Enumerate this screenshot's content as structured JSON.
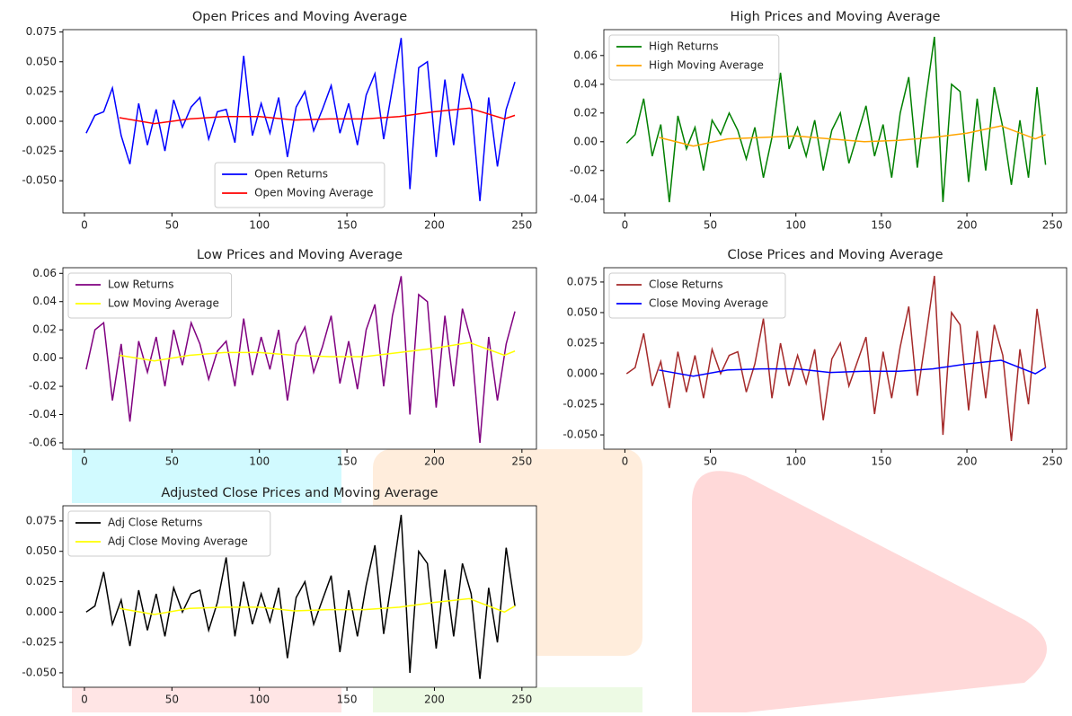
{
  "chart_data": [
    {
      "type": "line",
      "title": "Open Prices and Moving Average",
      "legend": "lower center",
      "xlim": [
        -12.3,
        258.3
      ],
      "xticks": [
        0,
        50,
        100,
        150,
        200,
        250
      ],
      "ylim": [
        -0.077,
        0.077
      ],
      "yticks": [
        {
          "value": -0.05,
          "label": "-0.050"
        },
        -0.025,
        {
          "value": 0,
          "label": "0.000"
        },
        0.025,
        {
          "value": 0.05,
          "label": "0.050"
        },
        0.075
      ],
      "series": [
        {
          "name": "Open Returns",
          "color": "#0000ff",
          "x": [
            1,
            6,
            11,
            16,
            21,
            26,
            31,
            36,
            41,
            46,
            51,
            56,
            61,
            66,
            71,
            76,
            81,
            86,
            91,
            96,
            101,
            106,
            111,
            116,
            121,
            126,
            131,
            136,
            141,
            146,
            151,
            156,
            161,
            166,
            171,
            176,
            181,
            186,
            191,
            196,
            201,
            206,
            211,
            216,
            221,
            226,
            231,
            236,
            241,
            246
          ],
          "values": [
            -0.01,
            0.005,
            0.008,
            0.028,
            -0.012,
            -0.036,
            0.015,
            -0.02,
            0.01,
            -0.025,
            0.018,
            -0.005,
            0.012,
            0.02,
            -0.015,
            0.008,
            0.01,
            -0.018,
            0.055,
            -0.012,
            0.015,
            -0.01,
            0.02,
            -0.03,
            0.012,
            0.025,
            -0.008,
            0.01,
            0.03,
            -0.01,
            0.015,
            -0.02,
            0.022,
            0.04,
            -0.015,
            0.028,
            0.07,
            -0.057,
            0.045,
            0.05,
            -0.03,
            0.035,
            -0.02,
            0.04,
            0.015,
            -0.067,
            0.02,
            -0.038,
            0.01,
            0.033
          ]
        },
        {
          "name": "Open Moving Average",
          "color": "#ff0000",
          "x": [
            20,
            40,
            60,
            80,
            100,
            120,
            140,
            160,
            180,
            200,
            220,
            240,
            246
          ],
          "values": [
            0.003,
            -0.002,
            0.002,
            0.004,
            0.004,
            0.001,
            0.002,
            0.002,
            0.004,
            0.008,
            0.011,
            0.002,
            0.005
          ]
        }
      ]
    },
    {
      "type": "line",
      "title": "High Prices and Moving Average",
      "legend": "upper left",
      "xlim": [
        -12.3,
        258.3
      ],
      "xticks": [
        0,
        50,
        100,
        150,
        200,
        250
      ],
      "ylim": [
        -0.0495,
        0.078
      ],
      "yticks": [
        -0.04,
        -0.02,
        {
          "value": 0,
          "label": "0.00"
        },
        0.02,
        0.04,
        0.06
      ],
      "series": [
        {
          "name": "High Returns",
          "color": "#008000",
          "x": [
            1,
            6,
            11,
            16,
            21,
            26,
            31,
            36,
            41,
            46,
            51,
            56,
            61,
            66,
            71,
            76,
            81,
            86,
            91,
            96,
            101,
            106,
            111,
            116,
            121,
            126,
            131,
            136,
            141,
            146,
            151,
            156,
            161,
            166,
            171,
            176,
            181,
            186,
            191,
            196,
            201,
            206,
            211,
            216,
            221,
            226,
            231,
            236,
            241,
            246
          ],
          "values": [
            -0.001,
            0.005,
            0.03,
            -0.01,
            0.012,
            -0.042,
            0.018,
            -0.005,
            0.01,
            -0.02,
            0.015,
            0.005,
            0.02,
            0.008,
            -0.012,
            0.01,
            -0.025,
            0.003,
            0.048,
            -0.005,
            0.01,
            -0.01,
            0.015,
            -0.02,
            0.008,
            0.02,
            -0.015,
            0.005,
            0.025,
            -0.01,
            0.012,
            -0.025,
            0.02,
            0.045,
            -0.018,
            0.03,
            0.073,
            -0.042,
            0.04,
            0.035,
            -0.028,
            0.03,
            -0.02,
            0.038,
            0.01,
            -0.03,
            0.015,
            -0.025,
            0.038,
            -0.016
          ]
        },
        {
          "name": "High Moving Average",
          "color": "#ffa500",
          "x": [
            20,
            40,
            60,
            80,
            100,
            120,
            140,
            160,
            180,
            200,
            220,
            240,
            246
          ],
          "values": [
            0.003,
            -0.003,
            0.002,
            0.003,
            0.004,
            0.002,
            0.0,
            0.001,
            0.003,
            0.006,
            0.011,
            0.002,
            0.005
          ]
        }
      ]
    },
    {
      "type": "line",
      "title": "Low Prices and Moving Average",
      "legend": "upper left",
      "xlim": [
        -12.3,
        258.3
      ],
      "xticks": [
        0,
        50,
        100,
        150,
        200,
        250
      ],
      "ylim": [
        -0.0645,
        0.064
      ],
      "yticks": [
        -0.06,
        -0.04,
        -0.02,
        {
          "value": 0,
          "label": "0.00"
        },
        0.02,
        0.04,
        0.06
      ],
      "series": [
        {
          "name": "Low Returns",
          "color": "#800080",
          "x": [
            1,
            6,
            11,
            16,
            21,
            26,
            31,
            36,
            41,
            46,
            51,
            56,
            61,
            66,
            71,
            76,
            81,
            86,
            91,
            96,
            101,
            106,
            111,
            116,
            121,
            126,
            131,
            136,
            141,
            146,
            151,
            156,
            161,
            166,
            171,
            176,
            181,
            186,
            191,
            196,
            201,
            206,
            211,
            216,
            221,
            226,
            231,
            236,
            241,
            246
          ],
          "values": [
            -0.008,
            0.02,
            0.025,
            -0.03,
            0.01,
            -0.045,
            0.012,
            -0.01,
            0.015,
            -0.02,
            0.02,
            -0.005,
            0.025,
            0.01,
            -0.015,
            0.005,
            0.012,
            -0.02,
            0.028,
            -0.012,
            0.015,
            -0.008,
            0.02,
            -0.03,
            0.01,
            0.022,
            -0.01,
            0.008,
            0.03,
            -0.018,
            0.012,
            -0.022,
            0.02,
            0.038,
            -0.02,
            0.03,
            0.058,
            -0.04,
            0.045,
            0.04,
            -0.035,
            0.03,
            -0.02,
            0.035,
            0.012,
            -0.06,
            0.015,
            -0.03,
            0.01,
            0.033
          ]
        },
        {
          "name": "Low Moving Average",
          "color": "#ffff00",
          "x": [
            20,
            40,
            60,
            80,
            100,
            120,
            140,
            160,
            180,
            200,
            220,
            240,
            246
          ],
          "values": [
            0.002,
            -0.002,
            0.002,
            0.004,
            0.004,
            0.002,
            0.001,
            0.001,
            0.004,
            0.007,
            0.011,
            0.002,
            0.005
          ]
        }
      ]
    },
    {
      "type": "line",
      "title": "Close Prices and Moving Average",
      "legend": "upper left",
      "xlim": [
        -12.3,
        258.3
      ],
      "xticks": [
        0,
        50,
        100,
        150,
        200,
        250
      ],
      "ylim": [
        -0.0617,
        0.0867
      ],
      "yticks": [
        {
          "value": -0.05,
          "label": "-0.050"
        },
        -0.025,
        {
          "value": 0,
          "label": "0.000"
        },
        0.025,
        {
          "value": 0.05,
          "label": "0.050"
        },
        0.075
      ],
      "series": [
        {
          "name": "Close Returns",
          "color": "#a52a2a",
          "x": [
            1,
            6,
            11,
            16,
            21,
            26,
            31,
            36,
            41,
            46,
            51,
            56,
            61,
            66,
            71,
            76,
            81,
            86,
            91,
            96,
            101,
            106,
            111,
            116,
            121,
            126,
            131,
            136,
            141,
            146,
            151,
            156,
            161,
            166,
            171,
            176,
            181,
            186,
            191,
            196,
            201,
            206,
            211,
            216,
            221,
            226,
            231,
            236,
            241,
            246
          ],
          "values": [
            0.0,
            0.005,
            0.033,
            -0.01,
            0.01,
            -0.028,
            0.018,
            -0.015,
            0.015,
            -0.02,
            0.02,
            0.0,
            0.015,
            0.018,
            -0.015,
            0.008,
            0.045,
            -0.02,
            0.025,
            -0.01,
            0.015,
            -0.008,
            0.02,
            -0.038,
            0.012,
            0.025,
            -0.01,
            0.01,
            0.03,
            -0.033,
            0.018,
            -0.02,
            0.022,
            0.055,
            -0.018,
            0.03,
            0.08,
            -0.05,
            0.05,
            0.04,
            -0.03,
            0.035,
            -0.02,
            0.04,
            0.015,
            -0.055,
            0.02,
            -0.025,
            0.053,
            0.005
          ]
        },
        {
          "name": "Close Moving Average",
          "color": "#0000ff",
          "x": [
            20,
            40,
            60,
            80,
            100,
            120,
            140,
            160,
            180,
            200,
            220,
            240,
            246
          ],
          "values": [
            0.003,
            -0.002,
            0.003,
            0.004,
            0.004,
            0.001,
            0.002,
            0.002,
            0.004,
            0.008,
            0.011,
            0.0,
            0.005
          ]
        }
      ]
    },
    {
      "type": "line",
      "title": "Adjusted Close Prices and Moving Average",
      "legend": "upper left",
      "xlim": [
        -12.3,
        258.3
      ],
      "xticks": [
        0,
        50,
        100,
        150,
        200,
        250
      ],
      "ylim": [
        -0.0619,
        0.0875
      ],
      "yticks": [
        {
          "value": -0.05,
          "label": "-0.050"
        },
        -0.025,
        {
          "value": 0,
          "label": "0.000"
        },
        0.025,
        {
          "value": 0.05,
          "label": "0.050"
        },
        0.075
      ],
      "series": [
        {
          "name": "Adj Close Returns",
          "color": "#000000",
          "x": [
            1,
            6,
            11,
            16,
            21,
            26,
            31,
            36,
            41,
            46,
            51,
            56,
            61,
            66,
            71,
            76,
            81,
            86,
            91,
            96,
            101,
            106,
            111,
            116,
            121,
            126,
            131,
            136,
            141,
            146,
            151,
            156,
            161,
            166,
            171,
            176,
            181,
            186,
            191,
            196,
            201,
            206,
            211,
            216,
            221,
            226,
            231,
            236,
            241,
            246
          ],
          "values": [
            0.0,
            0.005,
            0.033,
            -0.01,
            0.01,
            -0.028,
            0.018,
            -0.015,
            0.015,
            -0.02,
            0.02,
            0.0,
            0.015,
            0.018,
            -0.015,
            0.008,
            0.045,
            -0.02,
            0.025,
            -0.01,
            0.015,
            -0.008,
            0.02,
            -0.038,
            0.012,
            0.025,
            -0.01,
            0.01,
            0.03,
            -0.033,
            0.018,
            -0.02,
            0.022,
            0.055,
            -0.018,
            0.03,
            0.08,
            -0.05,
            0.05,
            0.04,
            -0.03,
            0.035,
            -0.02,
            0.04,
            0.015,
            -0.055,
            0.02,
            -0.025,
            0.053,
            0.005
          ]
        },
        {
          "name": "Adj Close Moving Average",
          "color": "#ffff00",
          "x": [
            20,
            40,
            60,
            80,
            100,
            120,
            140,
            160,
            180,
            200,
            220,
            240,
            246
          ],
          "values": [
            0.003,
            -0.002,
            0.003,
            0.004,
            0.004,
            0.001,
            0.002,
            0.002,
            0.004,
            0.008,
            0.011,
            0.0,
            0.005
          ]
        }
      ]
    }
  ]
}
